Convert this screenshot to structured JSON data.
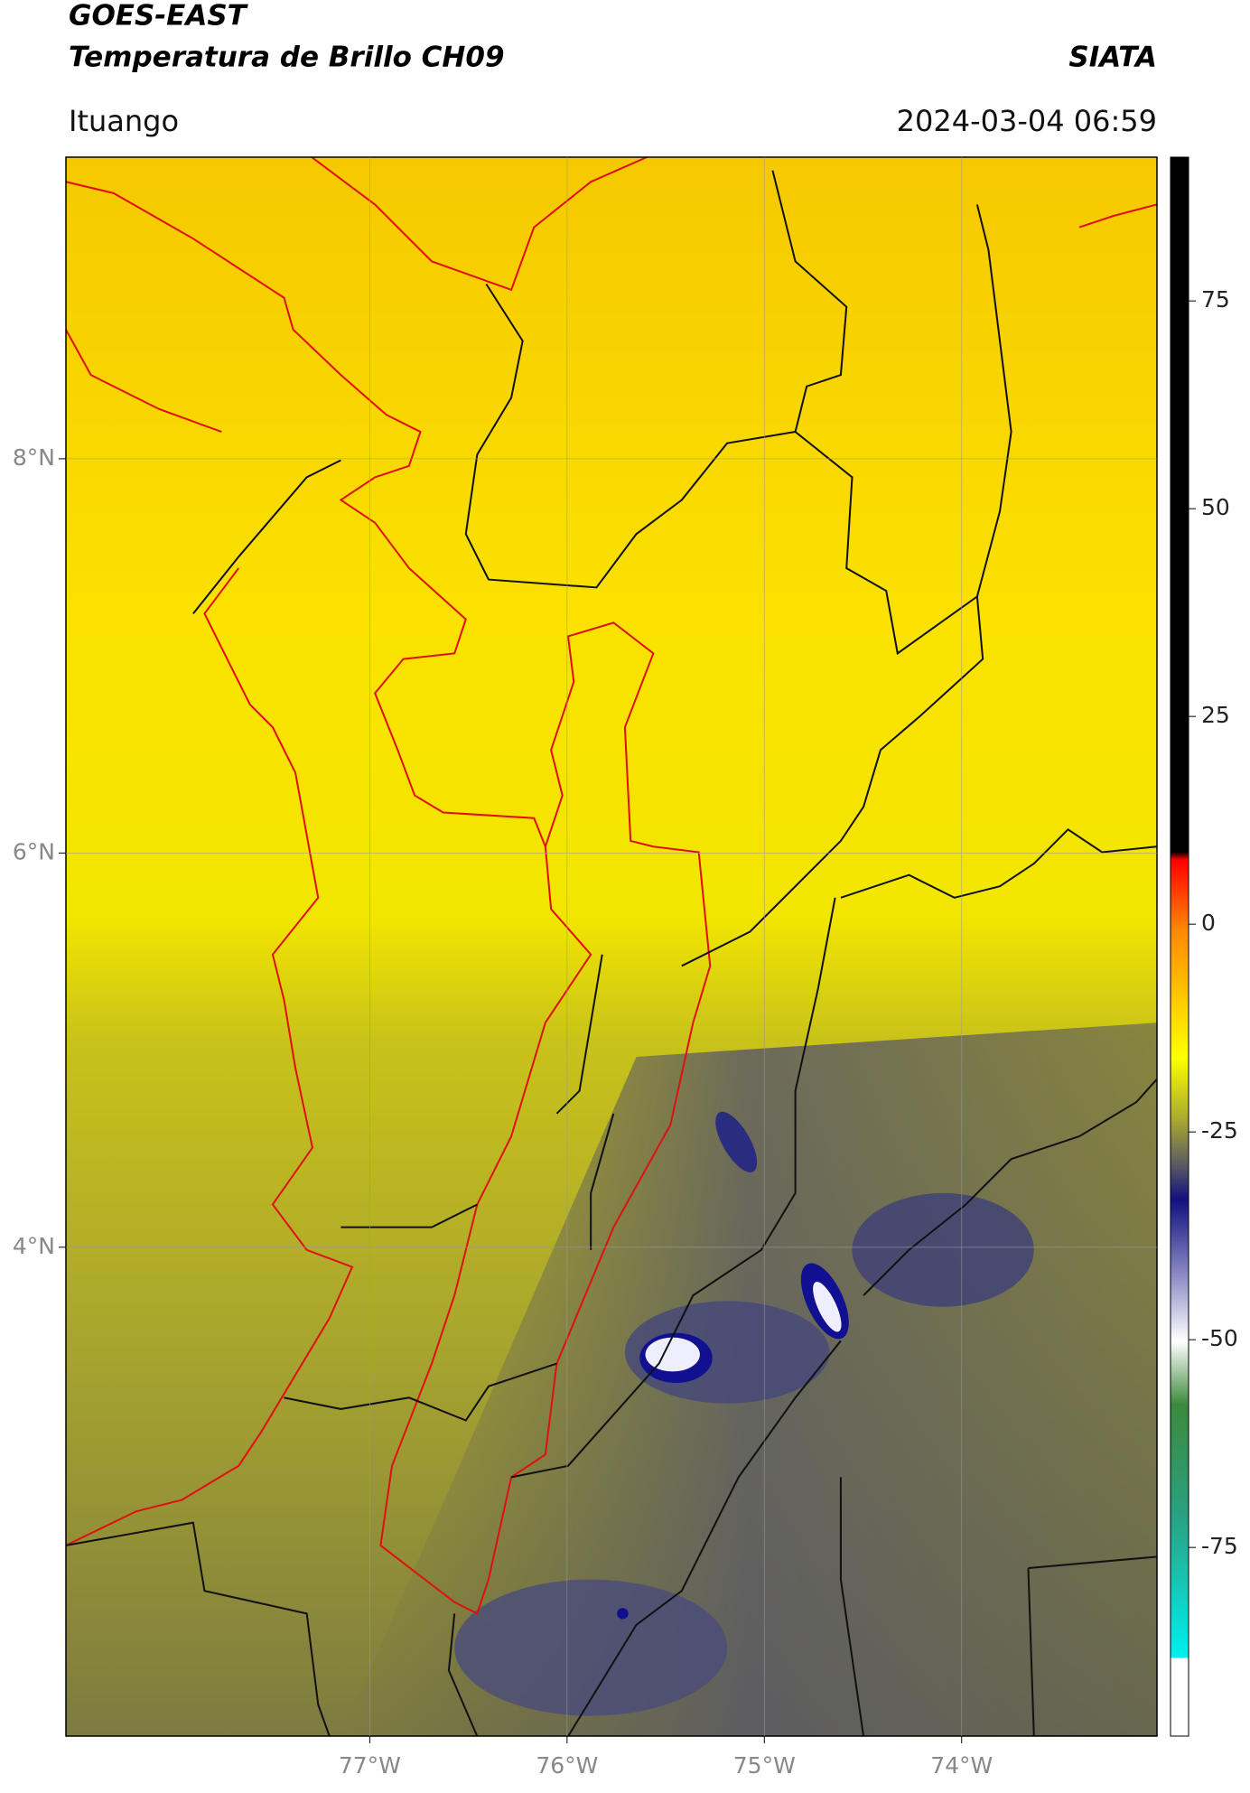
{
  "header": {
    "title": "GOES-EAST",
    "subtitle": "Temperatura de Brillo CH09",
    "source": "SIATA",
    "region": "Ituango",
    "datetime": "2024-03-04 06:59"
  },
  "map": {
    "xlim": [
      -78.54,
      -73.01
    ],
    "ylim": [
      1.52,
      9.53
    ],
    "xticks": [
      {
        "value": -77,
        "label": "77°W"
      },
      {
        "value": -76,
        "label": "76°W"
      },
      {
        "value": -75,
        "label": "75°W"
      },
      {
        "value": -74,
        "label": "74°W"
      }
    ],
    "yticks": [
      {
        "value": 8,
        "label": "8°N"
      },
      {
        "value": 6,
        "label": "6°N"
      },
      {
        "value": 4,
        "label": "4°N"
      }
    ]
  },
  "colorbar": {
    "lim": [
      -97.7,
      92.3
    ],
    "ticks": [
      75,
      50,
      25,
      0,
      -25,
      -50,
      -75
    ]
  }
}
